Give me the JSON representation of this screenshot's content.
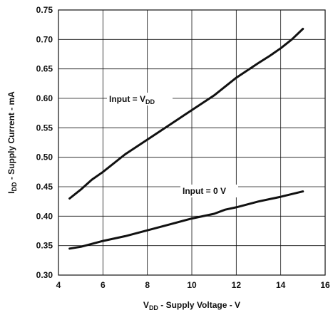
{
  "chart_data": {
    "type": "line",
    "xlabel": {
      "main": "V",
      "sub": "DD",
      "rest": " - Supply Voltage - V"
    },
    "ylabel": {
      "main": "I",
      "sub": "DD",
      "rest": " - Supply Current - mA"
    },
    "xlim": [
      4,
      16
    ],
    "ylim": [
      0.3,
      0.75
    ],
    "x_ticks": [
      "4",
      "6",
      "8",
      "10",
      "12",
      "14",
      "16"
    ],
    "y_ticks": [
      "0.30",
      "0.35",
      "0.40",
      "0.45",
      "0.50",
      "0.55",
      "0.60",
      "0.65",
      "0.70",
      "0.75"
    ],
    "grid": true,
    "series": [
      {
        "name": {
          "main": "Input = V",
          "sub": "DD"
        },
        "x": [
          4.5,
          5,
          5.5,
          6,
          7,
          8,
          9,
          10,
          11,
          12,
          13,
          13.5,
          14,
          14.5,
          15
        ],
        "y": [
          0.43,
          0.445,
          0.462,
          0.475,
          0.505,
          0.53,
          0.555,
          0.58,
          0.605,
          0.635,
          0.66,
          0.672,
          0.685,
          0.7,
          0.718
        ]
      },
      {
        "name": {
          "main": "Input  = 0 V",
          "sub": ""
        },
        "x": [
          4.5,
          5,
          6,
          7,
          8,
          9,
          10,
          11,
          11.5,
          12,
          12.5,
          13,
          14,
          15
        ],
        "y": [
          0.345,
          0.348,
          0.358,
          0.366,
          0.376,
          0.386,
          0.396,
          0.404,
          0.411,
          0.415,
          0.42,
          0.425,
          0.433,
          0.442
        ]
      }
    ]
  }
}
